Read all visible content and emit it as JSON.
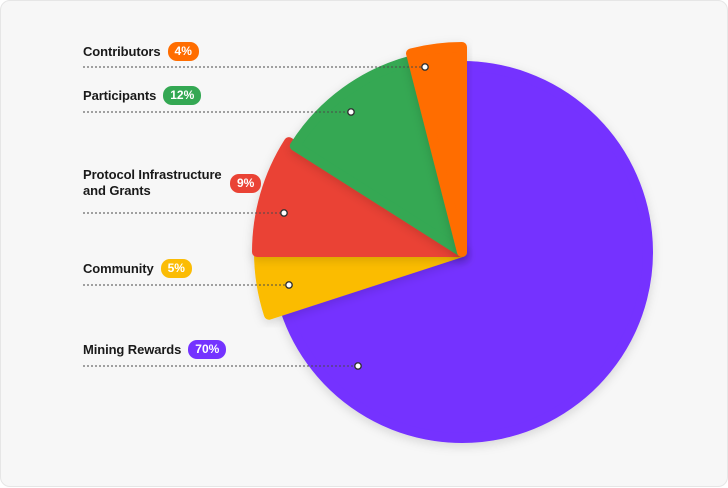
{
  "chart_data": {
    "type": "pie",
    "title": "",
    "legend": "left",
    "slices": [
      {
        "label": "Mining Rewards",
        "value": 70,
        "badge": "70%",
        "color": "#7433ff"
      },
      {
        "label": "Community",
        "value": 5,
        "badge": "5%",
        "color": "#fbbc05"
      },
      {
        "label": "Protocol Infrastructure and Grants",
        "value": 9,
        "badge": "9%",
        "color": "#ea4335"
      },
      {
        "label": "Participants",
        "value": 12,
        "badge": "12%",
        "color": "#34a853"
      },
      {
        "label": "Contributors",
        "value": 4,
        "badge": "4%",
        "color": "#ff6d00"
      }
    ]
  }
}
